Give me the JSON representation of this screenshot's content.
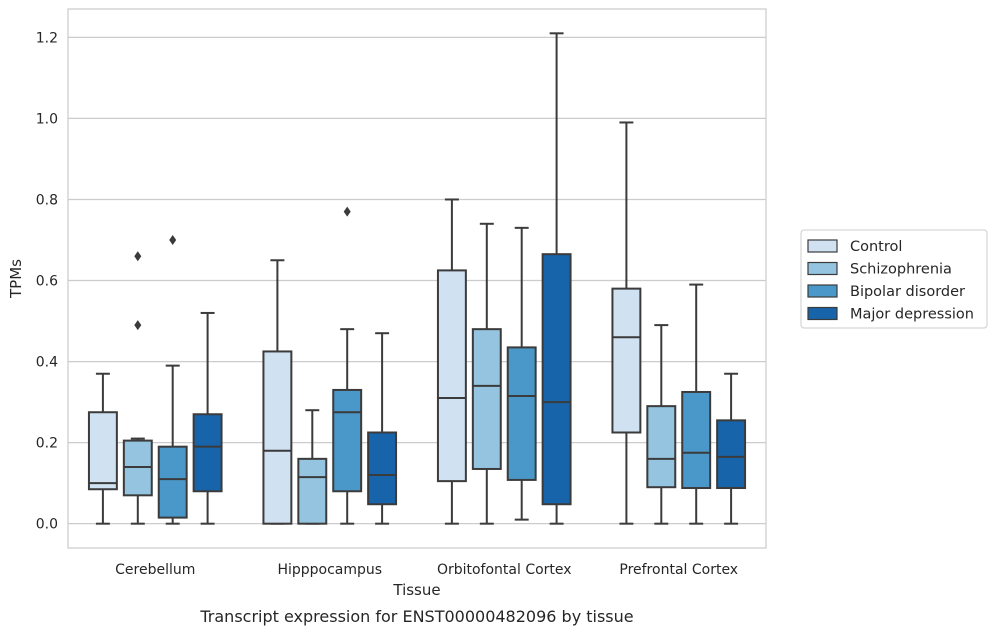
{
  "chart_data": {
    "type": "box",
    "title": "",
    "caption": "Transcript expression for ENST00000482096 by tissue",
    "xlabel": "Tissue",
    "ylabel": "TPMs",
    "ylim": [
      -0.06,
      1.27
    ],
    "yticks": [
      0.0,
      0.2,
      0.4,
      0.6,
      0.8,
      1.0,
      1.2
    ],
    "ytick_labels": [
      "0.0",
      "0.2",
      "0.4",
      "0.6",
      "0.8",
      "1.0",
      "1.2"
    ],
    "grid": "horizontal",
    "legend_position": "right",
    "categories": [
      "Cerebellum",
      "Hipppocampus",
      "Orbitofontal Cortex",
      "Prefrontal Cortex"
    ],
    "series": [
      {
        "name": "Control",
        "color": "#d0e1f2",
        "boxes": [
          {
            "min": 0.0,
            "q1": 0.085,
            "median": 0.1,
            "q3": 0.275,
            "max": 0.37,
            "outliers": []
          },
          {
            "min": 0.0,
            "q1": 0.0,
            "median": 0.18,
            "q3": 0.425,
            "max": 0.65,
            "outliers": []
          },
          {
            "min": 0.0,
            "q1": 0.105,
            "median": 0.31,
            "q3": 0.625,
            "max": 0.8,
            "outliers": []
          },
          {
            "min": 0.0,
            "q1": 0.225,
            "median": 0.46,
            "q3": 0.58,
            "max": 0.99,
            "outliers": []
          }
        ]
      },
      {
        "name": "Schizophrenia",
        "color": "#94c4df",
        "boxes": [
          {
            "min": 0.0,
            "q1": 0.07,
            "median": 0.14,
            "q3": 0.205,
            "max": 0.21,
            "outliers": [
              0.49,
              0.66
            ]
          },
          {
            "min": 0.0,
            "q1": 0.0,
            "median": 0.115,
            "q3": 0.16,
            "max": 0.28,
            "outliers": []
          },
          {
            "min": 0.0,
            "q1": 0.135,
            "median": 0.34,
            "q3": 0.48,
            "max": 0.74,
            "outliers": []
          },
          {
            "min": 0.0,
            "q1": 0.09,
            "median": 0.16,
            "q3": 0.29,
            "max": 0.49,
            "outliers": []
          }
        ]
      },
      {
        "name": "Bipolar disorder",
        "color": "#4a98c9",
        "boxes": [
          {
            "min": 0.0,
            "q1": 0.015,
            "median": 0.11,
            "q3": 0.19,
            "max": 0.39,
            "outliers": [
              0.7
            ]
          },
          {
            "min": 0.0,
            "q1": 0.08,
            "median": 0.275,
            "q3": 0.33,
            "max": 0.48,
            "outliers": [
              0.77
            ]
          },
          {
            "min": 0.01,
            "q1": 0.108,
            "median": 0.315,
            "q3": 0.435,
            "max": 0.73,
            "outliers": []
          },
          {
            "min": 0.0,
            "q1": 0.088,
            "median": 0.175,
            "q3": 0.325,
            "max": 0.59,
            "outliers": []
          }
        ]
      },
      {
        "name": "Major depression",
        "color": "#1764ab",
        "boxes": [
          {
            "min": 0.0,
            "q1": 0.08,
            "median": 0.19,
            "q3": 0.27,
            "max": 0.52,
            "outliers": []
          },
          {
            "min": 0.0,
            "q1": 0.048,
            "median": 0.12,
            "q3": 0.225,
            "max": 0.47,
            "outliers": []
          },
          {
            "min": 0.0,
            "q1": 0.048,
            "median": 0.3,
            "q3": 0.665,
            "max": 1.21,
            "outliers": []
          },
          {
            "min": 0.0,
            "q1": 0.088,
            "median": 0.165,
            "q3": 0.255,
            "max": 0.37,
            "outliers": []
          }
        ]
      }
    ]
  }
}
